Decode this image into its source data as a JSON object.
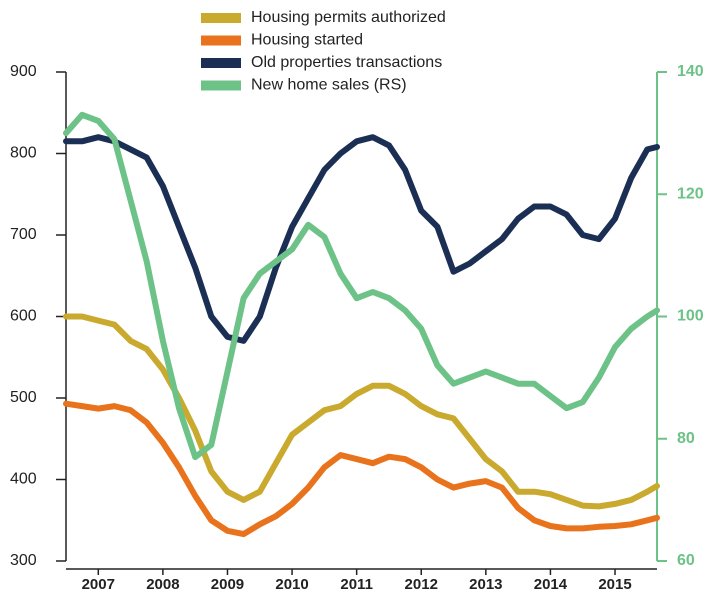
{
  "chart_data": {
    "type": "line",
    "x": [
      2007,
      2007.25,
      2007.5,
      2007.75,
      2008,
      2008.25,
      2008.5,
      2008.75,
      2009,
      2009.25,
      2009.5,
      2009.75,
      2010,
      2010.25,
      2010.5,
      2010.75,
      2011,
      2011.25,
      2011.5,
      2011.75,
      2012,
      2012.25,
      2012.5,
      2012.75,
      2013,
      2013.25,
      2013.5,
      2013.75,
      2014,
      2014.25,
      2014.5,
      2014.75,
      2015,
      2015.25,
      2015.5,
      2015.75,
      2016,
      2016.15
    ],
    "xlim": [
      2007,
      2016.15
    ],
    "xticks": [
      {
        "value": 2007.5,
        "label": "2007"
      },
      {
        "value": 2008.5,
        "label": "2008"
      },
      {
        "value": 2009.5,
        "label": "2009"
      },
      {
        "value": 2010.5,
        "label": "2010"
      },
      {
        "value": 2011.5,
        "label": "2011"
      },
      {
        "value": 2012.5,
        "label": "2012"
      },
      {
        "value": 2013.5,
        "label": "2013"
      },
      {
        "value": 2014.5,
        "label": "2014"
      },
      {
        "value": 2015.5,
        "label": "2015"
      }
    ],
    "ylim": [
      300,
      900
    ],
    "yticks": [
      300,
      400,
      500,
      600,
      700,
      800,
      900
    ],
    "y2lim": [
      60,
      140
    ],
    "y2ticks": [
      60,
      80,
      100,
      120,
      140
    ],
    "y2color": "#6cc287",
    "series": [
      {
        "name": "Housing permits authorized",
        "color": "#c9aa2e",
        "values": [
          600,
          600,
          595,
          590,
          570,
          560,
          535,
          500,
          460,
          410,
          385,
          375,
          385,
          420,
          455,
          470,
          485,
          490,
          505,
          515,
          515,
          505,
          490,
          480,
          475,
          450,
          425,
          410,
          385,
          385,
          382,
          375,
          368,
          367,
          370,
          375,
          385,
          392
        ]
      },
      {
        "name": "Housing started",
        "color": "#e8731c",
        "values": [
          493,
          490,
          487,
          490,
          485,
          470,
          445,
          415,
          380,
          350,
          337,
          333,
          345,
          355,
          370,
          390,
          415,
          430,
          425,
          420,
          428,
          425,
          415,
          400,
          390,
          395,
          398,
          390,
          365,
          350,
          343,
          340,
          340,
          342,
          343,
          345,
          350,
          353
        ]
      },
      {
        "name": "Old properties transactions",
        "color": "#1b2f55",
        "values": [
          815,
          815,
          820,
          815,
          805,
          795,
          760,
          710,
          660,
          600,
          575,
          570,
          600,
          660,
          710,
          745,
          780,
          800,
          815,
          820,
          810,
          780,
          730,
          710,
          655,
          665,
          680,
          695,
          720,
          735,
          735,
          725,
          700,
          695,
          720,
          770,
          805,
          808
        ]
      },
      {
        "name": "New home sales (RS)",
        "color": "#6cc287",
        "axis": "y2",
        "values": [
          130,
          133,
          132,
          129,
          119,
          109,
          96,
          85,
          77,
          79,
          91,
          103,
          107,
          109,
          111,
          115,
          113,
          107,
          103,
          104,
          103,
          101,
          98,
          92,
          89,
          90,
          91,
          90,
          89,
          89,
          87,
          85,
          86,
          90,
          95,
          98,
          100,
          101
        ]
      }
    ]
  }
}
